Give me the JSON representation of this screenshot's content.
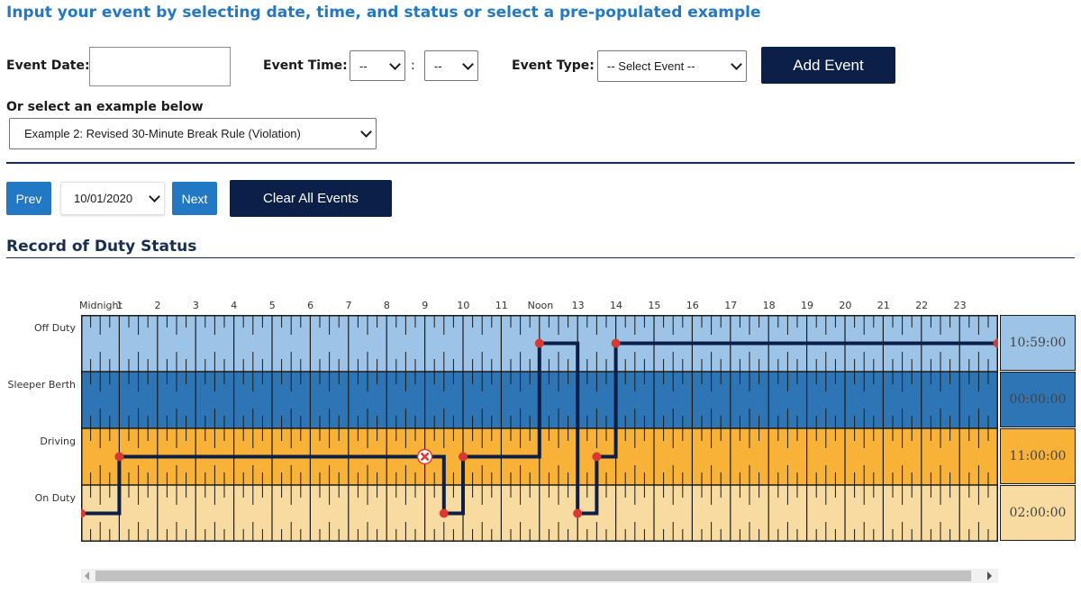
{
  "header": {
    "title": "Input your event by selecting date, time, and status or select a pre-populated example"
  },
  "form": {
    "event_date_label": "Event Date:",
    "event_date_value": "",
    "event_time_label": "Event Time:",
    "hour_value": "--",
    "minute_value": "--",
    "time_separator": ":",
    "event_type_label": "Event Type:",
    "event_type_value": "-- Select Event --",
    "add_event_label": "Add Event",
    "example_label": "Or select an example below",
    "example_value": "Example 2: Revised 30-Minute Break Rule (Violation)"
  },
  "nav": {
    "prev_label": "Prev",
    "date_value": "10/01/2020",
    "next_label": "Next",
    "clear_label": "Clear All Events"
  },
  "log": {
    "title": "Record of Duty Status",
    "hour_labels": [
      "Midnight",
      "1",
      "2",
      "3",
      "4",
      "5",
      "6",
      "7",
      "8",
      "9",
      "10",
      "11",
      "Noon",
      "13",
      "14",
      "15",
      "16",
      "17",
      "18",
      "19",
      "20",
      "21",
      "22",
      "23"
    ],
    "rows": [
      {
        "label": "Off Duty",
        "total": "10:59:00",
        "color": "#9dc3e6"
      },
      {
        "label": "Sleeper Berth",
        "total": "00:00:00",
        "color": "#2e75b6"
      },
      {
        "label": "Driving",
        "total": "11:00:00",
        "color": "#f7b237"
      },
      {
        "label": "On Duty",
        "total": "02:00:00",
        "color": "#f7dba0"
      }
    ],
    "segments": [
      {
        "status": 3,
        "start": 0,
        "end": 1
      },
      {
        "status": 2,
        "start": 1,
        "end": 9.5
      },
      {
        "status": 3,
        "start": 9.5,
        "end": 10
      },
      {
        "status": 2,
        "start": 10,
        "end": 12
      },
      {
        "status": 0,
        "start": 12,
        "end": 13
      },
      {
        "status": 3,
        "start": 13,
        "end": 13.5
      },
      {
        "status": 2,
        "start": 13.5,
        "end": 14
      },
      {
        "status": 0,
        "start": 14,
        "end": 24
      }
    ],
    "change_points": [
      {
        "time": 0,
        "status": 3
      },
      {
        "time": 1,
        "status": 2
      },
      {
        "time": 9.5,
        "status": 3
      },
      {
        "time": 10,
        "status": 2
      },
      {
        "time": 12,
        "status": 0
      },
      {
        "time": 13,
        "status": 3
      },
      {
        "time": 13.5,
        "status": 2
      },
      {
        "time": 14,
        "status": 0
      },
      {
        "time": 24,
        "status": 0
      }
    ],
    "violation": {
      "time": 9,
      "status": 2
    },
    "line_color": "#0b1f48",
    "point_color": "#d83933"
  }
}
